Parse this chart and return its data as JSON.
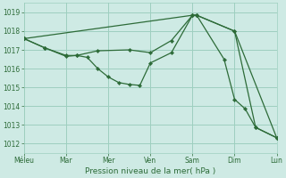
{
  "background_color": "#ceeae4",
  "grid_color": "#9ecfbf",
  "line_color": "#2d6b38",
  "xlabel": "Pression niveau de la mer( hPa )",
  "ylabel_ticks": [
    1012,
    1013,
    1014,
    1015,
    1016,
    1017,
    1018,
    1019
  ],
  "ylim": [
    1011.5,
    1019.5
  ],
  "x_labels": [
    "Méleu",
    "Mar",
    "Mer",
    "Ven",
    "Sam",
    "Dim",
    "Lun"
  ],
  "x_tick_pos": [
    0,
    2,
    4,
    6,
    8,
    10,
    12
  ],
  "xlim": [
    0,
    12
  ],
  "series1_x": [
    0,
    1,
    2,
    2.5,
    3,
    3.5,
    4,
    4.5,
    5,
    5.5,
    6,
    7,
    8,
    8.2,
    9.5,
    10,
    10.5,
    11,
    12
  ],
  "series1_y": [
    1017.6,
    1017.1,
    1016.65,
    1016.7,
    1016.6,
    1016.0,
    1015.55,
    1015.25,
    1015.15,
    1015.1,
    1016.3,
    1016.85,
    1018.85,
    1018.85,
    1016.5,
    1014.35,
    1013.85,
    1012.85,
    1012.3
  ],
  "series2_x": [
    0,
    1,
    2,
    2.5,
    3.5,
    5,
    6,
    7,
    8,
    8.2,
    10,
    11,
    12
  ],
  "series2_y": [
    1017.6,
    1017.1,
    1016.7,
    1016.7,
    1016.95,
    1017.0,
    1016.85,
    1017.5,
    1018.85,
    1018.85,
    1018.0,
    1012.85,
    1012.3
  ],
  "series3_x": [
    0,
    8,
    8.2,
    10,
    12
  ],
  "series3_y": [
    1017.6,
    1018.85,
    1018.85,
    1018.0,
    1012.3
  ]
}
